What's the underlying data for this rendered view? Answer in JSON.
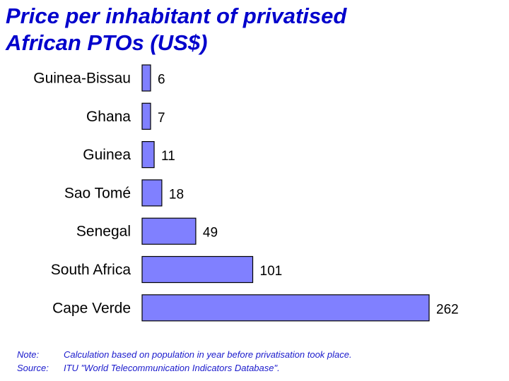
{
  "page": {
    "title_line1": "Price per inhabitant of privatised",
    "title_line2": "African PTOs (US$)"
  },
  "chart_data": {
    "type": "bar",
    "orientation": "horizontal",
    "categories": [
      "Guinea-Bissau",
      "Ghana",
      "Guinea",
      "Sao Tomé",
      "Senegal",
      "South Africa",
      "Cape Verde"
    ],
    "values": [
      6,
      7,
      11,
      18,
      49,
      101,
      262
    ],
    "title": "Price per inhabitant of privatised African PTOs (US$)",
    "xlabel": "",
    "ylabel": "",
    "xlim": [
      0,
      262
    ],
    "grid": false,
    "legend": "none",
    "bar_color": "#8080ff",
    "bar_edge_color": "#000000"
  },
  "footnote": {
    "note_label": "Note:",
    "note_text": "Calculation based on population in year before privatisation took place.",
    "source_label": "Source:",
    "source_text": "ITU  \"World Telecommunication Indicators Database\"."
  }
}
